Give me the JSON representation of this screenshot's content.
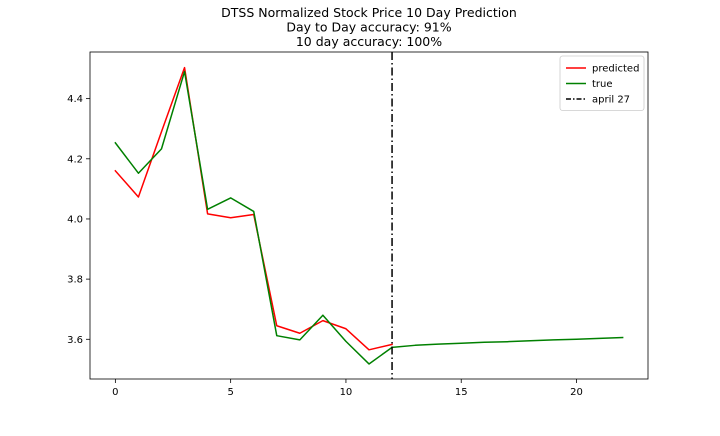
{
  "chart_data": {
    "type": "line",
    "title_lines": [
      "DTSS Normalized Stock Price 10 Day Prediction",
      "Day to Day accuracy: 91%",
      "10 day accuracy: 100%"
    ],
    "xlabel": "",
    "ylabel": "",
    "xlim": [
      -1.1,
      23.1
    ],
    "ylim": [
      3.468,
      4.555
    ],
    "x_ticks": [
      0,
      5,
      10,
      15,
      20
    ],
    "y_ticks": [
      3.6,
      3.8,
      4.0,
      4.2,
      4.4
    ],
    "x_tick_labels": [
      "0",
      "5",
      "10",
      "15",
      "20"
    ],
    "y_tick_labels": [
      "3.6",
      "3.8",
      "4.0",
      "4.2",
      "4.4"
    ],
    "grid": false,
    "legend_position": "top-right",
    "series": [
      {
        "name": "predicted",
        "color": "#ff0000",
        "style": "solid",
        "x": [
          0,
          1,
          2,
          3,
          4,
          5,
          6,
          7,
          8,
          9,
          10,
          11,
          12
        ],
        "y": [
          4.16,
          4.073,
          4.29,
          4.503,
          4.017,
          4.004,
          4.015,
          3.645,
          3.62,
          3.662,
          3.635,
          3.565,
          3.583
        ]
      },
      {
        "name": "true",
        "color": "#008000",
        "style": "solid",
        "x": [
          0,
          1,
          2,
          3,
          4,
          5,
          6,
          7,
          8,
          9,
          10,
          11,
          12,
          13,
          14,
          15,
          16,
          17,
          18,
          19,
          20,
          21,
          22
        ],
        "y": [
          4.253,
          4.152,
          4.233,
          4.49,
          4.032,
          4.07,
          4.025,
          3.612,
          3.598,
          3.68,
          3.593,
          3.518,
          3.573,
          3.58,
          3.584,
          3.587,
          3.59,
          3.592,
          3.595,
          3.598,
          3.6,
          3.603,
          3.606
        ]
      }
    ],
    "annotations": [
      {
        "name": "april 27",
        "type": "vline",
        "x": 12,
        "color": "#000000",
        "style": "dashdot"
      }
    ]
  }
}
